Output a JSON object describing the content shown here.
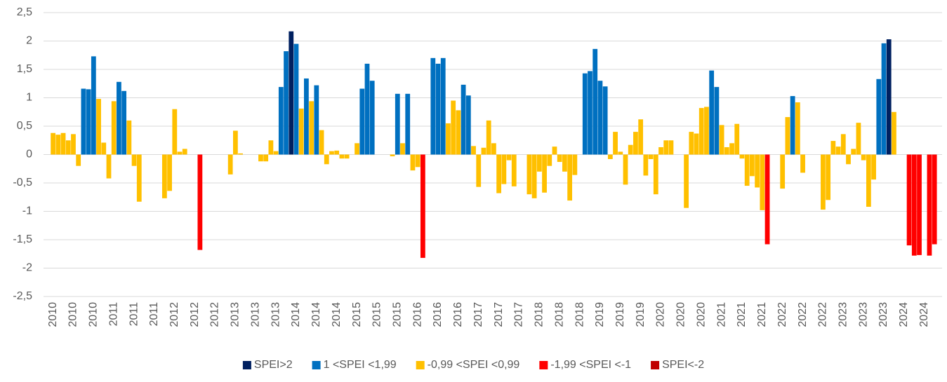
{
  "chart_data": {
    "type": "bar",
    "categories": [
      "2010",
      null,
      null,
      null,
      "2010",
      null,
      null,
      null,
      "2010",
      null,
      null,
      null,
      "2011",
      null,
      null,
      null,
      "2011",
      null,
      null,
      null,
      "2011",
      null,
      null,
      null,
      "2012",
      null,
      null,
      null,
      "2012",
      null,
      null,
      null,
      "2012",
      null,
      null,
      null,
      "2013",
      null,
      null,
      null,
      "2013",
      null,
      null,
      null,
      "2013",
      null,
      null,
      null,
      "2014",
      null,
      null,
      null,
      "2014",
      null,
      null,
      null,
      "2014",
      null,
      null,
      null,
      "2015",
      null,
      null,
      null,
      "2015",
      null,
      null,
      null,
      "2015",
      null,
      null,
      null,
      "2016",
      null,
      null,
      null,
      "2016",
      null,
      null,
      null,
      "2016",
      null,
      null,
      null,
      "2017",
      null,
      null,
      null,
      "2017",
      null,
      null,
      null,
      "2017",
      null,
      null,
      null,
      "2018",
      null,
      null,
      null,
      "2018",
      null,
      null,
      null,
      "2018",
      null,
      null,
      null,
      "2019",
      null,
      null,
      null,
      "2019",
      null,
      null,
      null,
      "2019",
      null,
      null,
      null,
      "2020",
      null,
      null,
      null,
      "2020",
      null,
      null,
      null,
      "2020",
      null,
      null,
      null,
      "2021",
      null,
      null,
      null,
      "2021",
      null,
      null,
      null,
      "2021",
      null,
      null,
      null,
      "2022",
      null,
      null,
      null,
      "2022",
      null,
      null,
      null,
      "2022",
      null,
      null,
      null,
      "2023",
      null,
      null,
      null,
      "2023",
      null,
      null,
      null,
      "2023",
      null,
      null,
      null,
      "2024",
      null,
      null,
      null,
      "2024",
      null,
      null,
      null
    ],
    "series": [
      {
        "name": "SPEI>2",
        "color": "#002060",
        "values": [
          null,
          null,
          null,
          null,
          null,
          null,
          null,
          null,
          null,
          null,
          null,
          null,
          null,
          null,
          null,
          null,
          null,
          null,
          null,
          null,
          null,
          null,
          null,
          null,
          null,
          null,
          null,
          null,
          null,
          null,
          null,
          null,
          null,
          null,
          null,
          null,
          null,
          null,
          null,
          null,
          null,
          null,
          null,
          null,
          null,
          null,
          null,
          2.17,
          null,
          null,
          null,
          null,
          null,
          null,
          null,
          null,
          null,
          null,
          null,
          null,
          null,
          null,
          null,
          null,
          null,
          null,
          null,
          null,
          null,
          null,
          null,
          null,
          null,
          null,
          null,
          null,
          null,
          null,
          null,
          null,
          null,
          null,
          null,
          null,
          null,
          null,
          null,
          null,
          null,
          null,
          null,
          null,
          null,
          null,
          null,
          null,
          null,
          null,
          null,
          null,
          null,
          null,
          null,
          null,
          null,
          null,
          null,
          null,
          null,
          null,
          null,
          null,
          null,
          null,
          null,
          null,
          null,
          null,
          null,
          null,
          null,
          null,
          null,
          null,
          null,
          null,
          null,
          null,
          null,
          null,
          null,
          null,
          null,
          null,
          null,
          null,
          null,
          null,
          null,
          null,
          null,
          null,
          null,
          null,
          null,
          null,
          null,
          null,
          null,
          null,
          null,
          null,
          null,
          null,
          null,
          null,
          null,
          null,
          null,
          null,
          null,
          null,
          null,
          null,
          null,
          2.03,
          null,
          null,
          null,
          null,
          null,
          null,
          null,
          null,
          null,
          null
        ]
      },
      {
        "name": "1 <SPEI <1,99",
        "color": "#0070c0",
        "values": [
          null,
          null,
          null,
          null,
          null,
          null,
          1.16,
          1.15,
          1.73,
          null,
          null,
          null,
          null,
          1.28,
          1.12,
          null,
          null,
          null,
          null,
          null,
          null,
          null,
          null,
          null,
          null,
          null,
          null,
          null,
          null,
          null,
          null,
          null,
          null,
          null,
          null,
          null,
          null,
          null,
          null,
          null,
          null,
          null,
          null,
          null,
          null,
          1.19,
          1.82,
          null,
          1.95,
          null,
          1.34,
          null,
          1.22,
          null,
          null,
          null,
          null,
          null,
          null,
          null,
          null,
          1.16,
          1.6,
          1.3,
          null,
          null,
          null,
          null,
          1.07,
          null,
          1.07,
          null,
          null,
          null,
          null,
          1.7,
          1.6,
          1.7,
          null,
          null,
          null,
          1.23,
          1.04,
          null,
          null,
          null,
          null,
          null,
          null,
          null,
          null,
          null,
          null,
          null,
          null,
          null,
          null,
          null,
          null,
          null,
          null,
          null,
          null,
          null,
          null,
          1.43,
          1.47,
          1.86,
          1.3,
          1.2,
          null,
          null,
          null,
          null,
          null,
          null,
          null,
          null,
          null,
          null,
          null,
          null,
          null,
          null,
          null,
          null,
          null,
          null,
          null,
          null,
          1.48,
          1.19,
          null,
          null,
          null,
          null,
          null,
          null,
          null,
          null,
          null,
          null,
          null,
          null,
          null,
          null,
          1.03,
          null,
          null,
          null,
          null,
          null,
          null,
          null,
          null,
          null,
          null,
          null,
          null,
          null,
          null,
          null,
          null,
          1.33,
          1.96,
          null,
          null,
          null,
          null,
          null,
          null,
          null,
          null,
          null,
          null,
          null
        ]
      },
      {
        "name": "-0,99 <SPEI <0,99",
        "color": "#ffc000",
        "values": [
          0.38,
          0.35,
          0.38,
          0.25,
          0.36,
          -0.2,
          null,
          null,
          null,
          0.98,
          0.21,
          -0.42,
          0.94,
          null,
          null,
          0.6,
          -0.2,
          -0.83,
          null,
          null,
          null,
          null,
          -0.77,
          -0.64,
          0.8,
          0.05,
          0.1,
          null,
          null,
          null,
          null,
          null,
          null,
          null,
          null,
          -0.35,
          0.42,
          0.02,
          null,
          null,
          null,
          -0.12,
          -0.12,
          0.25,
          0.06,
          null,
          null,
          null,
          null,
          0.81,
          null,
          0.94,
          null,
          0.43,
          -0.17,
          0.06,
          0.07,
          -0.07,
          -0.07,
          null,
          0.2,
          null,
          null,
          null,
          null,
          null,
          null,
          -0.03,
          null,
          0.2,
          null,
          -0.28,
          -0.22,
          null,
          null,
          null,
          null,
          null,
          0.55,
          0.95,
          0.78,
          null,
          null,
          0.15,
          -0.57,
          0.12,
          0.6,
          0.2,
          -0.68,
          -0.52,
          -0.1,
          -0.56,
          null,
          null,
          -0.7,
          -0.77,
          -0.3,
          -0.67,
          -0.2,
          0.14,
          -0.13,
          -0.3,
          -0.81,
          -0.36,
          null,
          null,
          null,
          null,
          null,
          null,
          -0.08,
          0.4,
          0.05,
          -0.53,
          0.17,
          0.4,
          0.62,
          -0.37,
          -0.08,
          -0.7,
          0.13,
          0.25,
          0.25,
          null,
          null,
          -0.94,
          0.4,
          0.37,
          0.82,
          0.84,
          null,
          null,
          0.52,
          0.13,
          0.2,
          0.54,
          -0.07,
          -0.55,
          -0.38,
          -0.58,
          -0.98,
          null,
          null,
          null,
          -0.6,
          0.66,
          null,
          0.92,
          -0.32,
          null,
          null,
          null,
          -0.97,
          -0.8,
          0.24,
          0.14,
          0.36,
          -0.17,
          0.1,
          0.56,
          -0.1,
          -0.92,
          -0.44,
          null,
          null,
          null,
          0.75,
          null,
          null,
          null,
          null,
          null,
          null,
          null,
          null,
          null
        ]
      },
      {
        "name": "-1,99 <SPEI <-1",
        "color": "#ff0000",
        "values": [
          null,
          null,
          null,
          null,
          null,
          null,
          null,
          null,
          null,
          null,
          null,
          null,
          null,
          null,
          null,
          null,
          null,
          null,
          null,
          null,
          null,
          null,
          null,
          null,
          null,
          null,
          null,
          null,
          null,
          -1.68,
          null,
          null,
          null,
          null,
          null,
          null,
          null,
          null,
          null,
          null,
          null,
          null,
          null,
          null,
          null,
          null,
          null,
          null,
          null,
          null,
          null,
          null,
          null,
          null,
          null,
          null,
          null,
          null,
          null,
          null,
          null,
          null,
          null,
          null,
          null,
          null,
          null,
          null,
          null,
          null,
          null,
          null,
          null,
          -1.82,
          null,
          null,
          null,
          null,
          null,
          null,
          null,
          null,
          null,
          null,
          null,
          null,
          null,
          null,
          null,
          null,
          null,
          null,
          null,
          null,
          null,
          null,
          null,
          null,
          null,
          null,
          null,
          null,
          null,
          null,
          null,
          null,
          null,
          null,
          null,
          null,
          null,
          null,
          null,
          null,
          null,
          null,
          null,
          null,
          null,
          null,
          null,
          null,
          null,
          null,
          null,
          null,
          null,
          null,
          null,
          null,
          null,
          null,
          null,
          null,
          null,
          null,
          null,
          null,
          null,
          null,
          null,
          -1.58,
          null,
          null,
          null,
          null,
          null,
          null,
          null,
          null,
          null,
          null,
          null,
          null,
          null,
          null,
          null,
          null,
          null,
          null,
          null,
          null,
          null,
          null,
          null,
          null,
          null,
          null,
          null,
          -1.6,
          -1.78,
          -1.77,
          null,
          -1.78,
          -1.58,
          null
        ]
      },
      {
        "name": "SPEI<-2",
        "color": "#c00000",
        "values": [
          null,
          null,
          null,
          null,
          null,
          null,
          null,
          null,
          null,
          null,
          null,
          null,
          null,
          null,
          null,
          null,
          null,
          null,
          null,
          null,
          null,
          null,
          null,
          null,
          null,
          null,
          null,
          null,
          null,
          null,
          null,
          null,
          null,
          null,
          null,
          null,
          null,
          null,
          null,
          null,
          null,
          null,
          null,
          null,
          null,
          null,
          null,
          null,
          null,
          null,
          null,
          null,
          null,
          null,
          null,
          null,
          null,
          null,
          null,
          null,
          null,
          null,
          null,
          null,
          null,
          null,
          null,
          null,
          null,
          null,
          null,
          null,
          null,
          null,
          null,
          null,
          null,
          null,
          null,
          null,
          null,
          null,
          null,
          null,
          null,
          null,
          null,
          null,
          null,
          null,
          null,
          null,
          null,
          null,
          null,
          null,
          null,
          null,
          null,
          null,
          null,
          null,
          null,
          null,
          null,
          null,
          null,
          null,
          null,
          null,
          null,
          null,
          null,
          null,
          null,
          null,
          null,
          null,
          null,
          null,
          null,
          null,
          null,
          null,
          null,
          null,
          null,
          null,
          null,
          null,
          null,
          null,
          null,
          null,
          null,
          null,
          null,
          null,
          null,
          null,
          null,
          null,
          null,
          null,
          null,
          null,
          null,
          null,
          null,
          null,
          null,
          null,
          null,
          null,
          null,
          null,
          null,
          null,
          null,
          null,
          null,
          null,
          null,
          null,
          null,
          null,
          null,
          null,
          null,
          null,
          null,
          null,
          null,
          null,
          null,
          null
        ]
      }
    ],
    "ylim": [
      -2.5,
      2.5
    ],
    "yticks": [
      {
        "value": -2.5,
        "label": "-2,5"
      },
      -2,
      {
        "value": -1.5,
        "label": "-1,5"
      },
      -1,
      {
        "value": -0.5,
        "label": "-0,5"
      },
      0,
      {
        "value": 0.5,
        "label": "0,5"
      },
      1,
      {
        "value": 1.5,
        "label": "1,5"
      },
      2,
      {
        "value": 2.5,
        "label": "2,5"
      }
    ],
    "grid": true,
    "legend": "bottom"
  }
}
